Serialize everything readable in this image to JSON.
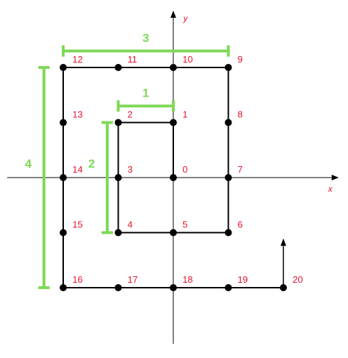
{
  "axes": {
    "x_label": "x",
    "y_label": "y"
  },
  "colors": {
    "path": "#000000",
    "point": "#000000",
    "label": "#e8102a",
    "bracket": "#7ed957"
  },
  "points": [
    {
      "label": "0",
      "x": 0,
      "y": 0
    },
    {
      "label": "1",
      "x": 0,
      "y": 1
    },
    {
      "label": "2",
      "x": -1,
      "y": 1
    },
    {
      "label": "3",
      "x": -1,
      "y": 0
    },
    {
      "label": "4",
      "x": -1,
      "y": -1
    },
    {
      "label": "5",
      "x": 0,
      "y": -1
    },
    {
      "label": "6",
      "x": 1,
      "y": -1
    },
    {
      "label": "7",
      "x": 1,
      "y": 0
    },
    {
      "label": "8",
      "x": 1,
      "y": 1
    },
    {
      "label": "9",
      "x": 1,
      "y": 2
    },
    {
      "label": "10",
      "x": 0,
      "y": 2
    },
    {
      "label": "11",
      "x": -1,
      "y": 2
    },
    {
      "label": "12",
      "x": -2,
      "y": 2
    },
    {
      "label": "13",
      "x": -2,
      "y": 1
    },
    {
      "label": "14",
      "x": -2,
      "y": 0
    },
    {
      "label": "15",
      "x": -2,
      "y": -1
    },
    {
      "label": "16",
      "x": -2,
      "y": -2
    },
    {
      "label": "17",
      "x": -1,
      "y": -2
    },
    {
      "label": "18",
      "x": 0,
      "y": -2
    },
    {
      "label": "19",
      "x": 1,
      "y": -2
    },
    {
      "label": "20",
      "x": 2,
      "y": -2
    }
  ],
  "segment_labels": [
    {
      "label": "1",
      "orientation": "horizontal",
      "from": -1,
      "to": 0,
      "at": 1.3
    },
    {
      "label": "2",
      "orientation": "vertical",
      "from": -1,
      "to": 1,
      "at": -1.2
    },
    {
      "label": "3",
      "orientation": "horizontal",
      "from": -2,
      "to": 1,
      "at": 2.3
    },
    {
      "label": "4",
      "orientation": "vertical",
      "from": -2,
      "to": 2,
      "at": -2.35
    }
  ]
}
